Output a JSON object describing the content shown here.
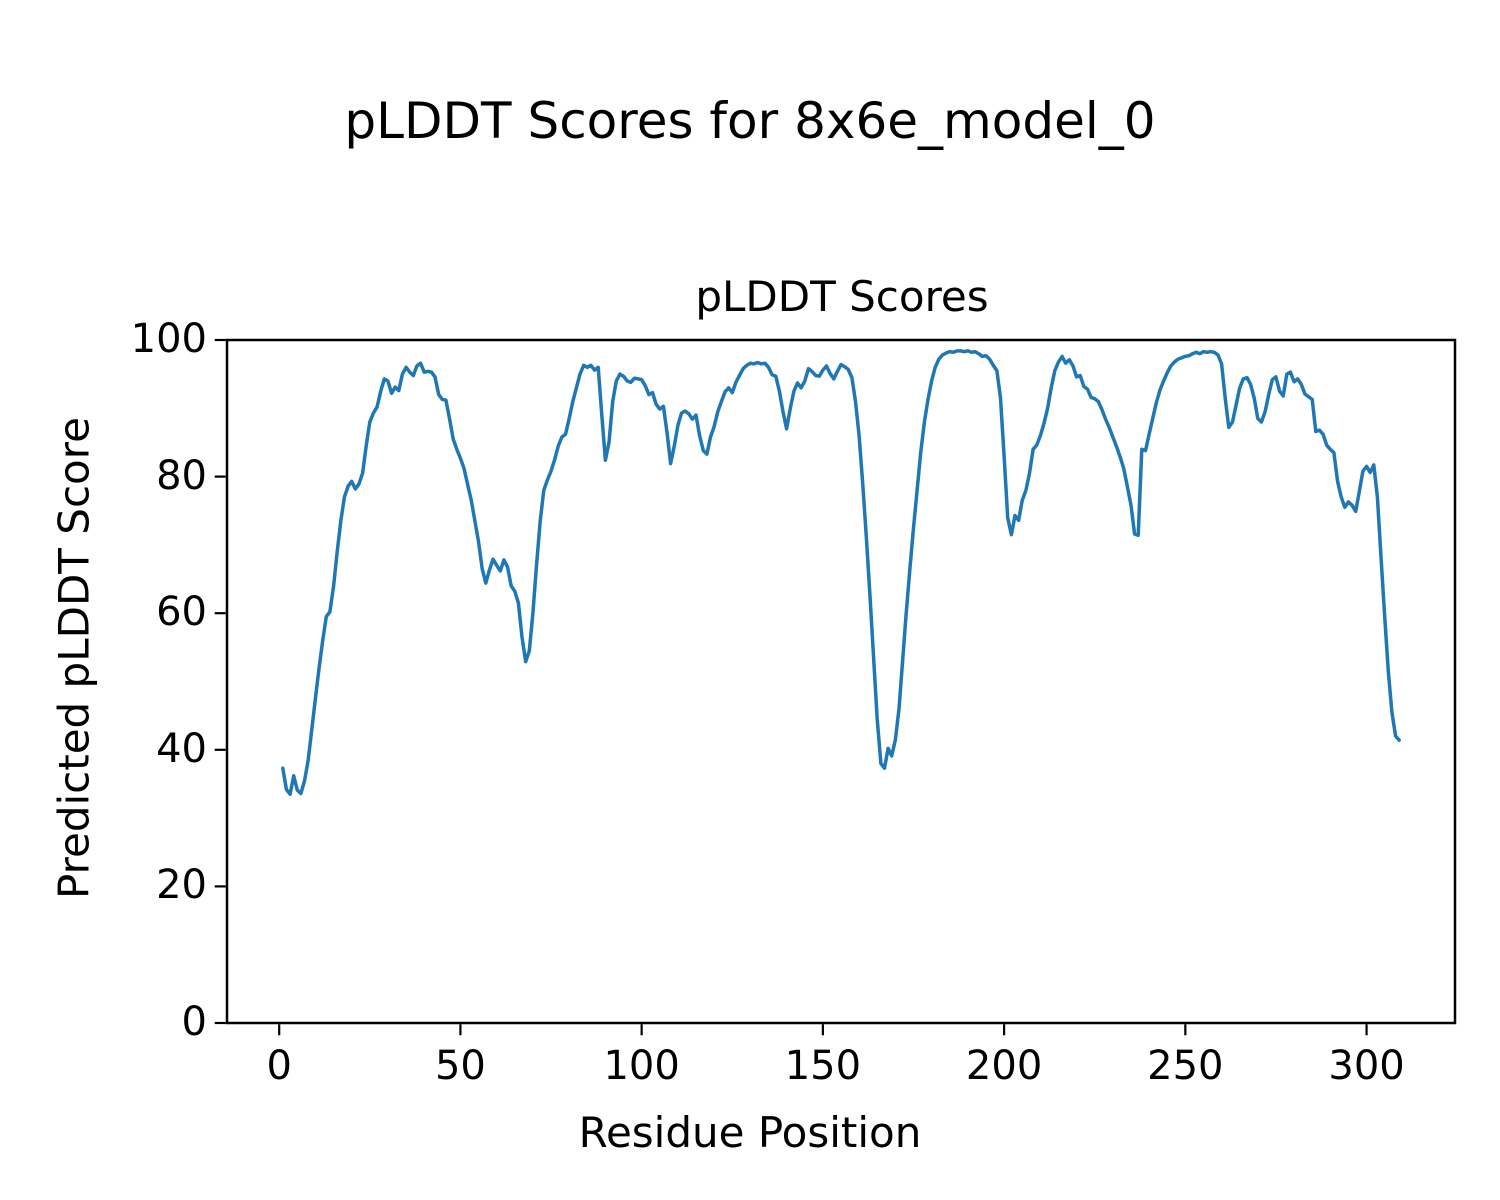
{
  "figure_title": "pLDDT Scores for 8x6e_model_0",
  "chart_data": {
    "type": "line",
    "title": "pLDDT Scores",
    "xlabel": "Residue Position",
    "ylabel": "Predicted pLDDT Score",
    "xlim": [
      -14.4,
      324.4
    ],
    "ylim": [
      0,
      100
    ],
    "xticks": [
      0,
      50,
      100,
      150,
      200,
      250,
      300
    ],
    "yticks": [
      0,
      20,
      40,
      60,
      80,
      100
    ],
    "grid": false,
    "legend_position": "none",
    "line_color": "#1f77b4",
    "line_width": 3.5,
    "axes_edge_color": "#000000",
    "series": [
      {
        "name": "pLDDT",
        "x_start": 1,
        "x_step": 1,
        "values": [
          37.3,
          34.2,
          33.5,
          36.2,
          34.1,
          33.6,
          35.5,
          38.5,
          43.0,
          47.5,
          52.0,
          56.0,
          59.5,
          60.2,
          64.0,
          69.0,
          73.5,
          77.0,
          78.6,
          79.3,
          78.2,
          78.9,
          80.5,
          84.5,
          88.0,
          89.3,
          90.2,
          92.5,
          94.3,
          94.0,
          92.2,
          93.1,
          92.6,
          95.0,
          96.0,
          95.3,
          94.8,
          96.2,
          96.6,
          95.3,
          95.4,
          95.3,
          94.6,
          92.0,
          91.3,
          91.2,
          88.5,
          85.5,
          84.0,
          82.7,
          81.2,
          78.8,
          76.5,
          73.5,
          70.5,
          66.5,
          64.4,
          66.3,
          67.9,
          67.0,
          66.2,
          67.8,
          66.8,
          64.0,
          63.2,
          61.5,
          56.5,
          52.9,
          54.5,
          60.0,
          67.0,
          73.5,
          78.0,
          79.5,
          80.8,
          82.5,
          84.5,
          85.8,
          86.2,
          88.5,
          91.0,
          93.0,
          95.0,
          96.3,
          96.0,
          96.3,
          95.6,
          96.0,
          89.0,
          82.4,
          85.0,
          91.0,
          94.0,
          95.0,
          94.7,
          94.0,
          93.8,
          94.4,
          94.3,
          94.2,
          93.3,
          92.0,
          92.3,
          90.6,
          89.9,
          90.3,
          86.5,
          81.9,
          84.5,
          87.5,
          89.3,
          89.6,
          89.2,
          88.4,
          89.0,
          86.0,
          83.8,
          83.3,
          85.8,
          87.3,
          89.5,
          91.0,
          92.4,
          93.0,
          92.3,
          93.8,
          94.8,
          95.8,
          96.3,
          96.6,
          96.5,
          96.7,
          96.5,
          96.6,
          96.0,
          94.9,
          94.7,
          92.5,
          89.5,
          87.0,
          90.0,
          92.5,
          93.7,
          93.0,
          94.0,
          95.8,
          95.4,
          94.8,
          94.7,
          95.6,
          96.2,
          95.1,
          94.3,
          95.4,
          96.4,
          96.1,
          95.7,
          94.5,
          91.0,
          86.0,
          79.0,
          71.0,
          62.5,
          53.5,
          44.5,
          38.0,
          37.3,
          40.2,
          39.1,
          41.5,
          46.0,
          53.0,
          60.0,
          66.5,
          72.5,
          78.0,
          83.5,
          88.0,
          91.3,
          94.0,
          96.0,
          97.2,
          97.8,
          98.1,
          98.3,
          98.2,
          98.4,
          98.4,
          98.3,
          98.4,
          98.2,
          98.3,
          98.0,
          97.6,
          97.7,
          97.2,
          96.3,
          95.5,
          91.5,
          83.0,
          74.0,
          71.5,
          74.3,
          73.6,
          76.5,
          78.0,
          80.5,
          84.0,
          84.6,
          86.0,
          87.8,
          90.0,
          93.0,
          95.5,
          96.8,
          97.6,
          96.6,
          97.1,
          96.2,
          94.6,
          94.8,
          93.2,
          92.8,
          91.6,
          91.4,
          91.0,
          89.8,
          88.4,
          87.2,
          85.8,
          84.4,
          82.9,
          81.2,
          78.6,
          75.8,
          71.6,
          71.4,
          84.0,
          83.8,
          86.2,
          88.5,
          90.8,
          92.7,
          94.0,
          95.2,
          96.2,
          96.8,
          97.2,
          97.4,
          97.6,
          97.7,
          98.0,
          98.2,
          98.0,
          98.3,
          98.2,
          98.3,
          98.2,
          97.8,
          96.5,
          91.5,
          87.2,
          88.0,
          90.5,
          93.0,
          94.3,
          94.5,
          93.5,
          91.5,
          88.5,
          88.0,
          89.5,
          92.0,
          94.2,
          94.6,
          92.5,
          91.8,
          95.0,
          95.3,
          93.9,
          94.3,
          93.5,
          92.1,
          91.7,
          91.3,
          86.6,
          86.8,
          86.2,
          84.6,
          84.0,
          83.5,
          79.3,
          77.0,
          75.5,
          76.3,
          75.8,
          74.9,
          77.8,
          80.8,
          81.5,
          80.6,
          81.7,
          77.0,
          68.0,
          59.5,
          51.5,
          45.5,
          42.0,
          41.4
        ]
      }
    ]
  }
}
